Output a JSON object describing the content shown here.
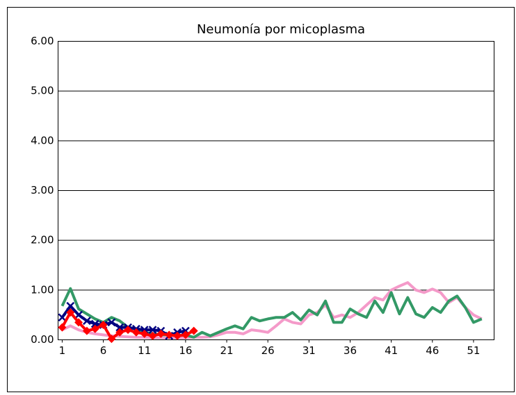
{
  "chart_data": {
    "type": "line",
    "title": "Neumonía por micoplasma",
    "x": [
      1,
      2,
      3,
      4,
      5,
      6,
      7,
      8,
      9,
      10,
      11,
      12,
      13,
      14,
      15,
      16,
      17,
      18,
      19,
      20,
      21,
      22,
      23,
      24,
      25,
      26,
      27,
      28,
      29,
      30,
      31,
      32,
      33,
      34,
      35,
      36,
      37,
      38,
      39,
      40,
      41,
      42,
      43,
      44,
      45,
      46,
      47,
      48,
      49,
      50,
      51,
      52
    ],
    "xlim": [
      0.5,
      53.5
    ],
    "xticks": [
      1,
      6,
      11,
      16,
      21,
      26,
      31,
      36,
      41,
      46,
      51
    ],
    "ylim": [
      0,
      6
    ],
    "yticks": [
      {
        "value": 0,
        "label": "0.00"
      },
      {
        "value": 1,
        "label": "1.00"
      },
      {
        "value": 2,
        "label": "2.00"
      },
      {
        "value": 3,
        "label": "3.00"
      },
      {
        "value": 4,
        "label": "4.00"
      },
      {
        "value": 5,
        "label": "5.00"
      },
      {
        "value": 6,
        "label": "6.00"
      }
    ],
    "grid": true,
    "series": [
      {
        "color": "#f49ac9",
        "marker": "none",
        "values": [
          0.2,
          0.28,
          0.2,
          0.15,
          0.12,
          0.1,
          0.08,
          0.07,
          0.06,
          0.05,
          0.05,
          0.04,
          0.04,
          0.04,
          0.04,
          0.04,
          0.05,
          0.05,
          0.06,
          0.1,
          0.15,
          0.15,
          0.12,
          0.2,
          0.18,
          0.15,
          0.28,
          0.42,
          0.35,
          0.32,
          0.5,
          0.55,
          0.7,
          0.45,
          0.5,
          0.45,
          0.55,
          0.7,
          0.85,
          0.8,
          1.0,
          1.08,
          1.15,
          1.0,
          0.95,
          1.02,
          0.95,
          0.75,
          0.85,
          0.65,
          0.5,
          0.42
        ]
      },
      {
        "color": "#339966",
        "marker": "none",
        "values": [
          0.68,
          1.03,
          0.62,
          0.52,
          0.42,
          0.35,
          0.45,
          0.38,
          0.25,
          0.22,
          0.15,
          0.12,
          0.1,
          0.1,
          0.08,
          0.1,
          0.05,
          0.15,
          0.08,
          0.15,
          0.22,
          0.28,
          0.22,
          0.45,
          0.38,
          0.42,
          0.45,
          0.45,
          0.55,
          0.4,
          0.6,
          0.5,
          0.78,
          0.35,
          0.35,
          0.62,
          0.52,
          0.45,
          0.78,
          0.55,
          0.95,
          0.52,
          0.85,
          0.52,
          0.45,
          0.65,
          0.55,
          0.78,
          0.88,
          0.65,
          0.35,
          0.42
        ]
      },
      {
        "color": "#000080",
        "marker": "x",
        "values": [
          0.45,
          0.68,
          0.5,
          0.38,
          0.32,
          0.3,
          0.35,
          0.25,
          0.25,
          0.22,
          0.2,
          0.2,
          0.18,
          0.08,
          0.15,
          0.18,
          null,
          null,
          null,
          null,
          null,
          null,
          null,
          null,
          null,
          null,
          null,
          null,
          null,
          null,
          null,
          null,
          null,
          null,
          null,
          null,
          null,
          null,
          null,
          null,
          null,
          null,
          null,
          null,
          null,
          null,
          null,
          null,
          null,
          null,
          null,
          null
        ]
      },
      {
        "color": "#ff0000",
        "marker": "diamond",
        "values": [
          0.25,
          0.55,
          0.35,
          0.18,
          0.22,
          0.3,
          0.02,
          0.15,
          0.2,
          0.15,
          0.12,
          0.08,
          0.12,
          0.1,
          0.08,
          0.1,
          0.18,
          null,
          null,
          null,
          null,
          null,
          null,
          null,
          null,
          null,
          null,
          null,
          null,
          null,
          null,
          null,
          null,
          null,
          null,
          null,
          null,
          null,
          null,
          null,
          null,
          null,
          null,
          null,
          null,
          null,
          null,
          null,
          null,
          null,
          null,
          null
        ]
      }
    ]
  }
}
